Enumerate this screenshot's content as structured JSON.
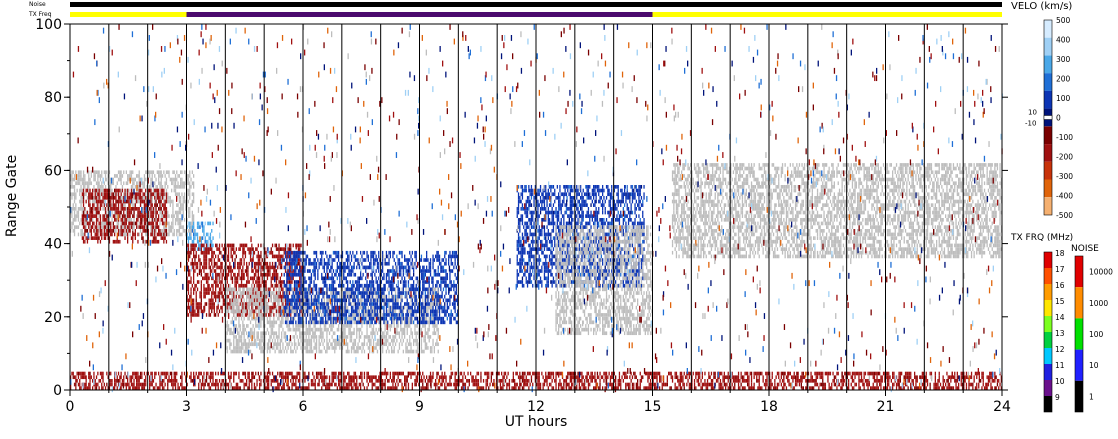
{
  "chart_data": {
    "type": "heatmap",
    "xlabel": "UT hours",
    "ylabel": "Range Gate",
    "xlim": [
      0,
      24
    ],
    "ylim": [
      0,
      100
    ],
    "xticks": [
      "0",
      "3",
      "6",
      "9",
      "12",
      "15",
      "18",
      "21",
      "24"
    ],
    "yticks": [
      "0",
      "20",
      "40",
      "60",
      "80",
      "100"
    ],
    "vertical_lines_hours": [
      0,
      1,
      2,
      3,
      4,
      5,
      6,
      7,
      8,
      9,
      10,
      11,
      12,
      13,
      14,
      15,
      16,
      17,
      18,
      19,
      20,
      21,
      22,
      23,
      24
    ],
    "status_bars": {
      "noise_label": "Noise",
      "txfreq_label": "TX Freq",
      "noise_color": "#000000",
      "txfreq_segments": [
        {
          "from": 0,
          "to": 3,
          "color": "#ffff00"
        },
        {
          "from": 3,
          "to": 15,
          "color": "#4b0a6e"
        },
        {
          "from": 15,
          "to": 24,
          "color": "#ffff00"
        }
      ]
    },
    "velocity_scale": {
      "title": "VELO (km/s)",
      "ticks": [
        "500",
        "400",
        "300",
        "200",
        "100",
        "0",
        "-100",
        "-200",
        "-300",
        "-400",
        "-500"
      ],
      "small_ticks": [
        "10",
        "-10"
      ],
      "colors_top_to_bottom": [
        "#d6ecff",
        "#9fd0f5",
        "#4aa8e8",
        "#1f6fd6",
        "#0c35b4",
        "#00137a",
        "#7a0000",
        "#a01010",
        "#c8320a",
        "#e0640a",
        "#f5b070"
      ]
    },
    "tx_freq_scale": {
      "title": "TX FRQ (MHz)",
      "ticks": [
        "18",
        "17",
        "16",
        "15",
        "14",
        "13",
        "12",
        "11",
        "10",
        "9"
      ],
      "colors_top_to_bottom": [
        "#e00000",
        "#ff5000",
        "#ff9c00",
        "#ffe600",
        "#7cff20",
        "#00d040",
        "#00c8ff",
        "#2020e0",
        "#6a108c",
        "#000000"
      ]
    },
    "noise_scale": {
      "title": "NOISE",
      "ticks": [
        "10000",
        "1000",
        "100",
        "10",
        "1"
      ],
      "colors_top_to_bottom": [
        "#e00000",
        "#ff8c00",
        "#00e000",
        "#2020ff",
        "#000000"
      ]
    },
    "regions": [
      {
        "label": "ground scatter band",
        "t0": 0,
        "t1": 3.2,
        "g0": 42,
        "g1": 60,
        "value": "ground"
      },
      {
        "label": "receding echoes",
        "t0": 0.3,
        "t1": 2.5,
        "g0": 40,
        "g1": 55,
        "value": -150
      },
      {
        "label": "approaching echoes",
        "t0": 3.0,
        "t1": 3.7,
        "g0": 38,
        "g1": 46,
        "value": 300
      },
      {
        "label": "mixed echoes",
        "t0": 3.0,
        "t1": 6.0,
        "g0": 20,
        "g1": 40,
        "value": -150
      },
      {
        "label": "ground scatter",
        "t0": 4.0,
        "t1": 9.5,
        "g0": 10,
        "g1": 28,
        "value": "ground"
      },
      {
        "label": "approaching echoes",
        "t0": 5.5,
        "t1": 10.0,
        "g0": 18,
        "g1": 38,
        "value": 120
      },
      {
        "label": "approaching echoes",
        "t0": 11.5,
        "t1": 14.8,
        "g0": 28,
        "g1": 56,
        "value": 120
      },
      {
        "label": "ground scatter",
        "t0": 12.5,
        "t1": 15.0,
        "g0": 15,
        "g1": 45,
        "value": "ground"
      },
      {
        "label": "ground scatter",
        "t0": 15.5,
        "t1": 24.0,
        "g0": 36,
        "g1": 62,
        "value": "ground"
      },
      {
        "label": "near-range echoes",
        "t0": 0,
        "t1": 24,
        "g0": 0,
        "g1": 5,
        "value": -150
      }
    ]
  }
}
